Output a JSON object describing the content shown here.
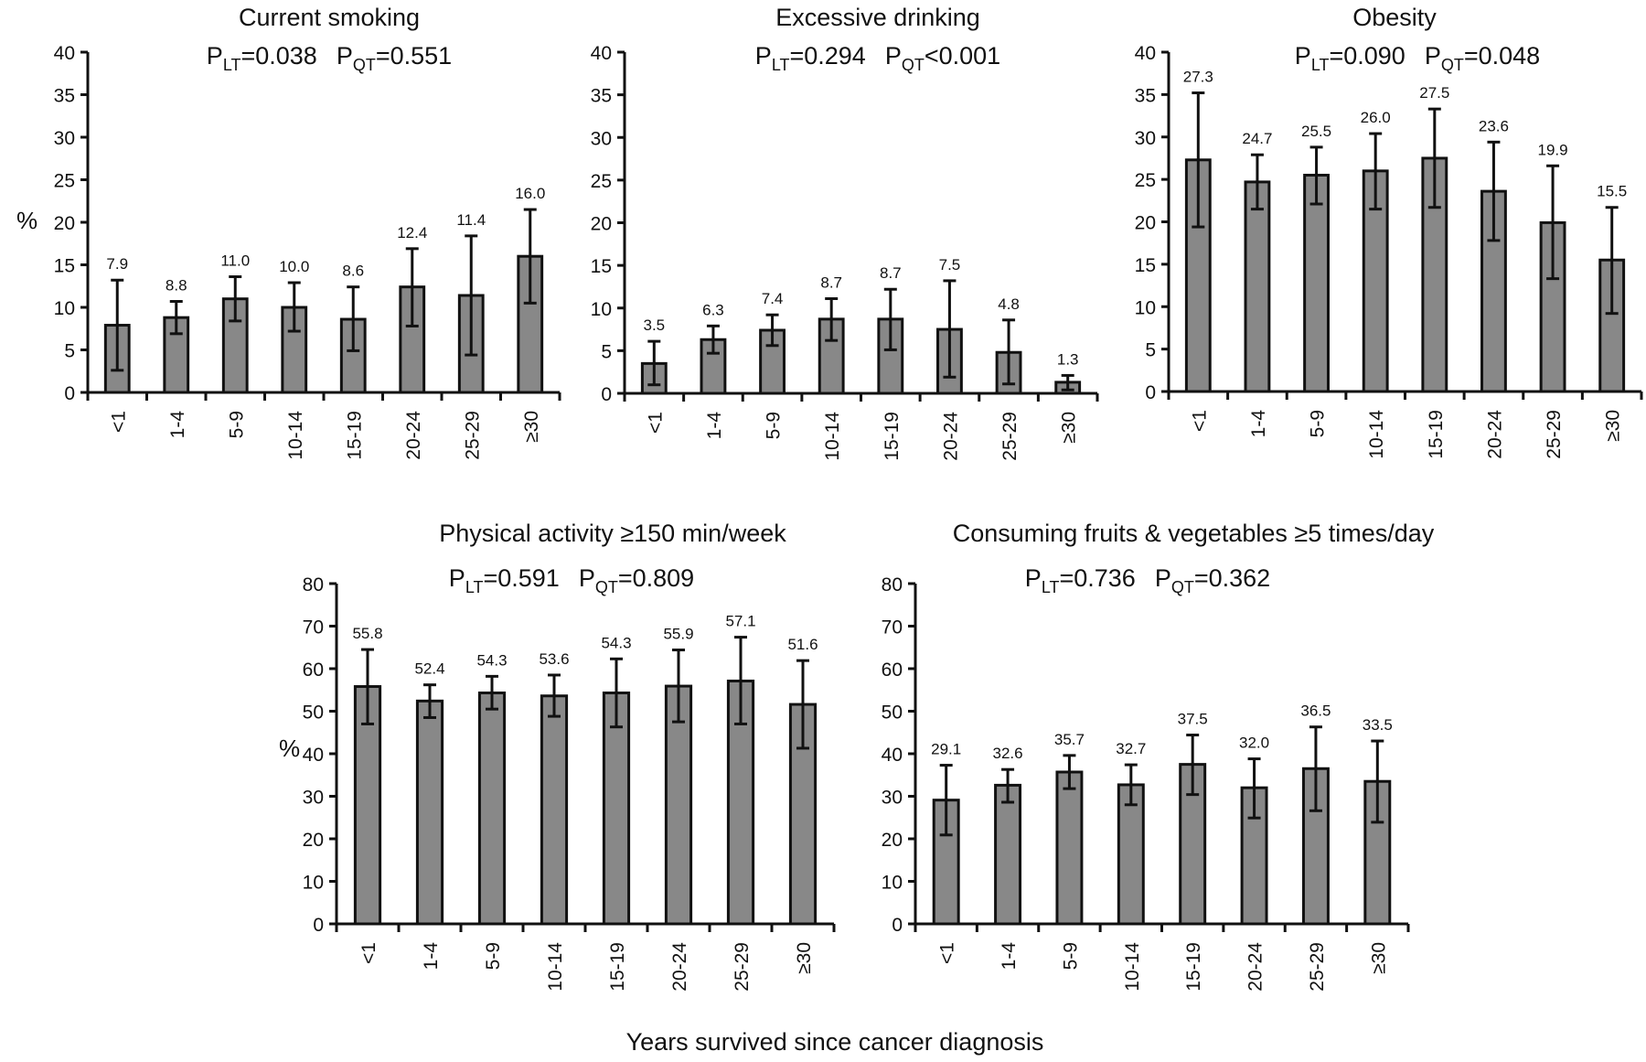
{
  "figure": {
    "shared_xlabel": "Years survived since cancer diagnosis",
    "bar_color": "#888888",
    "stroke_color": "#111111"
  },
  "chart_data": [
    {
      "type": "bar",
      "title": "Current smoking",
      "p_values": [
        {
          "label": "P",
          "sub": "LT",
          "op": "=",
          "value": "0.038"
        },
        {
          "label": "P",
          "sub": "QT",
          "op": "=",
          "value": "0.551"
        }
      ],
      "ylabel": "%",
      "xlabel": "",
      "ylim": [
        0,
        40
      ],
      "yticks": [
        0,
        5,
        10,
        15,
        20,
        25,
        30,
        35,
        40
      ],
      "categories": [
        "<1",
        "1-4",
        "5-9",
        "10-14",
        "15-19",
        "20-24",
        "25-29",
        "≥30"
      ],
      "values": [
        7.9,
        8.8,
        11.0,
        10.0,
        8.6,
        12.4,
        11.4,
        16.0
      ],
      "value_labels": [
        "7.9",
        "8.8",
        "11.0",
        "10.0",
        "8.6",
        "12.4",
        "11.4",
        "16.0"
      ],
      "ci_lower": [
        2.6,
        6.9,
        8.4,
        7.2,
        4.9,
        7.8,
        4.4,
        10.5
      ],
      "ci_upper": [
        13.2,
        10.7,
        13.6,
        12.9,
        12.4,
        16.9,
        18.4,
        21.5
      ],
      "grid": false
    },
    {
      "type": "bar",
      "title": "Excessive drinking",
      "p_values": [
        {
          "label": "P",
          "sub": "LT",
          "op": "=",
          "value": "0.294"
        },
        {
          "label": "P",
          "sub": "QT",
          "op": "<",
          "value": "0.001"
        }
      ],
      "ylabel": "",
      "xlabel": "",
      "ylim": [
        0,
        40
      ],
      "yticks": [
        0,
        5,
        10,
        15,
        20,
        25,
        30,
        35,
        40
      ],
      "categories": [
        "<1",
        "1-4",
        "5-9",
        "10-14",
        "15-19",
        "20-24",
        "25-29",
        "≥30"
      ],
      "values": [
        3.5,
        6.3,
        7.4,
        8.7,
        8.7,
        7.5,
        4.8,
        1.3
      ],
      "value_labels": [
        "3.5",
        "6.3",
        "7.4",
        "8.7",
        "8.7",
        "7.5",
        "4.8",
        "1.3"
      ],
      "ci_lower": [
        1.0,
        4.7,
        5.6,
        6.2,
        5.1,
        1.9,
        1.1,
        0.4
      ],
      "ci_upper": [
        6.1,
        7.9,
        9.2,
        11.1,
        12.2,
        13.2,
        8.6,
        2.1
      ],
      "grid": false
    },
    {
      "type": "bar",
      "title": "Obesity",
      "p_values": [
        {
          "label": "P",
          "sub": "LT",
          "op": "=",
          "value": "0.090"
        },
        {
          "label": "P",
          "sub": "QT",
          "op": "=",
          "value": "0.048"
        }
      ],
      "ylabel": "",
      "xlabel": "",
      "ylim": [
        0,
        40
      ],
      "yticks": [
        0,
        5,
        10,
        15,
        20,
        25,
        30,
        35,
        40
      ],
      "categories": [
        "<1",
        "1-4",
        "5-9",
        "10-14",
        "15-19",
        "20-24",
        "25-29",
        "≥30"
      ],
      "values": [
        27.3,
        24.7,
        25.5,
        26.0,
        27.5,
        23.6,
        19.9,
        15.5
      ],
      "value_labels": [
        "27.3",
        "24.7",
        "25.5",
        "26.0",
        "27.5",
        "23.6",
        "19.9",
        "15.5"
      ],
      "ci_lower": [
        19.4,
        21.5,
        22.1,
        21.5,
        21.7,
        17.8,
        13.3,
        9.2
      ],
      "ci_upper": [
        35.2,
        27.9,
        28.8,
        30.4,
        33.3,
        29.4,
        26.6,
        21.7
      ],
      "grid": false
    },
    {
      "type": "bar",
      "title": "Physical activity  ≥150 min/week",
      "p_values": [
        {
          "label": "P",
          "sub": "LT",
          "op": "=",
          "value": "0.591"
        },
        {
          "label": "P",
          "sub": "QT",
          "op": "=",
          "value": "0.809"
        }
      ],
      "ylabel": "%",
      "xlabel": "",
      "ylim": [
        0,
        80
      ],
      "yticks": [
        0,
        10,
        20,
        30,
        40,
        50,
        60,
        70,
        80
      ],
      "categories": [
        "<1",
        "1-4",
        "5-9",
        "10-14",
        "15-19",
        "20-24",
        "25-29",
        "≥30"
      ],
      "values": [
        55.8,
        52.4,
        54.3,
        53.6,
        54.3,
        55.9,
        57.1,
        51.6
      ],
      "value_labels": [
        "55.8",
        "52.4",
        "54.3",
        "53.6",
        "54.3",
        "55.9",
        "57.1",
        "51.6"
      ],
      "ci_lower": [
        47.0,
        48.5,
        50.5,
        48.8,
        46.3,
        47.5,
        47.0,
        41.3
      ],
      "ci_upper": [
        64.5,
        56.2,
        58.2,
        58.5,
        62.3,
        64.4,
        67.4,
        61.9
      ],
      "grid": false
    },
    {
      "type": "bar",
      "title": "Consuming fruits & vegetables ≥5 times/day",
      "p_values": [
        {
          "label": "P",
          "sub": "LT",
          "op": "=",
          "value": "0.736"
        },
        {
          "label": "P",
          "sub": "QT",
          "op": "=",
          "value": "0.362"
        }
      ],
      "ylabel": "",
      "xlabel": "",
      "ylim": [
        0,
        80
      ],
      "yticks": [
        0,
        10,
        20,
        30,
        40,
        50,
        60,
        70,
        80
      ],
      "categories": [
        "<1",
        "1-4",
        "5-9",
        "10-14",
        "15-19",
        "20-24",
        "25-29",
        "≥30"
      ],
      "values": [
        29.1,
        32.6,
        35.7,
        32.7,
        37.5,
        32.0,
        36.5,
        33.5
      ],
      "value_labels": [
        "29.1",
        "32.6",
        "35.7",
        "32.7",
        "37.5",
        "32.0",
        "36.5",
        "33.5"
      ],
      "ci_lower": [
        20.9,
        28.6,
        31.8,
        28.0,
        30.4,
        24.9,
        26.6,
        23.9
      ],
      "ci_upper": [
        37.3,
        36.3,
        39.6,
        37.4,
        44.4,
        38.8,
        46.3,
        43.0
      ],
      "grid": false
    }
  ]
}
